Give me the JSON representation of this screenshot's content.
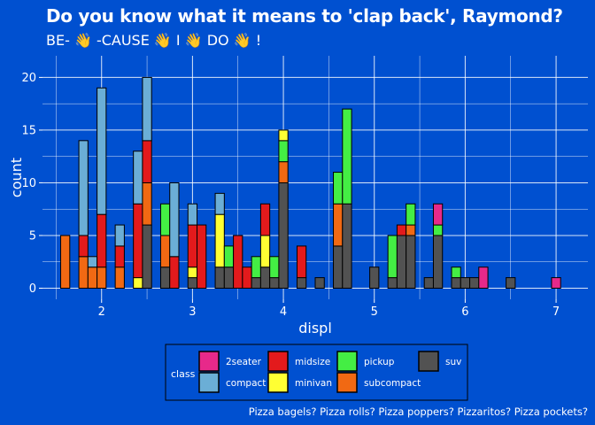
{
  "title": "Do you know what it means to 'clap back', Raymond?",
  "subtitle": "BE- 👋 -CAUSE 👋 I 👋 DO 👋 !",
  "caption": "Pizza bagels? Pizza rolls? Pizza poppers? Pizzaritos? Pizza pockets?",
  "colors": {
    "background": "#0050d0",
    "grid": "#ffffff",
    "2seater": "#e7298a",
    "compact": "#6baed6",
    "midsize": "#e31a1c",
    "minivan": "#ffff33",
    "pickup": "#44ee44",
    "subcompact": "#f16913",
    "suv": "#525252"
  },
  "chart_data": {
    "type": "bar",
    "stacked": true,
    "histogram": true,
    "xlabel": "displ",
    "ylabel": "count",
    "xlim": [
      1.35,
      7.35
    ],
    "ylim": [
      -1.05,
      22.05
    ],
    "xticks": [
      2,
      3,
      4,
      5,
      6,
      7
    ],
    "yticks": [
      0,
      5,
      10,
      15,
      20
    ],
    "bin_width": 0.1,
    "legend_title": "class",
    "legend_position": "bottom",
    "grid": true,
    "series_order": [
      "2seater",
      "compact",
      "midsize",
      "minivan",
      "pickup",
      "subcompact",
      "suv"
    ],
    "bins": [
      {
        "x": 1.6,
        "suv": 0,
        "subcompact": 5
      },
      {
        "x": 1.8,
        "subcompact": 3,
        "midsize": 2,
        "compact": 9
      },
      {
        "x": 1.9,
        "subcompact": 2,
        "compact": 1
      },
      {
        "x": 2.0,
        "subcompact": 2,
        "midsize": 5,
        "compact": 12
      },
      {
        "x": 2.2,
        "subcompact": 2,
        "midsize": 2,
        "compact": 2
      },
      {
        "x": 2.4,
        "minivan": 1,
        "midsize": 7,
        "compact": 5
      },
      {
        "x": 2.5,
        "suv": 6,
        "subcompact": 4,
        "midsize": 4,
        "compact": 6
      },
      {
        "x": 2.7,
        "suv": 2,
        "subcompact": 3,
        "pickup": 3
      },
      {
        "x": 2.8,
        "midsize": 3,
        "compact": 7
      },
      {
        "x": 3.0,
        "suv": 1,
        "minivan": 1,
        "midsize": 4,
        "compact": 2
      },
      {
        "x": 3.1,
        "midsize": 6
      },
      {
        "x": 3.3,
        "suv": 2,
        "minivan": 5,
        "compact": 2
      },
      {
        "x": 3.4,
        "suv": 2,
        "pickup": 2
      },
      {
        "x": 3.5,
        "midsize": 5
      },
      {
        "x": 3.6,
        "midsize": 2
      },
      {
        "x": 3.7,
        "suv": 1,
        "pickup": 2
      },
      {
        "x": 3.8,
        "suv": 2,
        "minivan": 3,
        "midsize": 3
      },
      {
        "x": 3.9,
        "suv": 1,
        "pickup": 2
      },
      {
        "x": 4.0,
        "suv": 10,
        "subcompact": 2,
        "pickup": 2,
        "minivan": 1
      },
      {
        "x": 4.2,
        "suv": 1,
        "midsize": 3
      },
      {
        "x": 4.4,
        "suv": 1
      },
      {
        "x": 4.6,
        "suv": 4,
        "subcompact": 4,
        "pickup": 3
      },
      {
        "x": 4.7,
        "suv": 8,
        "pickup": 9
      },
      {
        "x": 5.0,
        "suv": 2
      },
      {
        "x": 5.2,
        "suv": 1,
        "pickup": 4
      },
      {
        "x": 5.3,
        "suv": 5,
        "midsize": 1
      },
      {
        "x": 5.4,
        "suv": 5,
        "subcompact": 1,
        "pickup": 2
      },
      {
        "x": 5.6,
        "suv": 1
      },
      {
        "x": 5.7,
        "suv": 5,
        "pickup": 1,
        "2seater": 2
      },
      {
        "x": 5.9,
        "suv": 1,
        "pickup": 1
      },
      {
        "x": 6.0,
        "suv": 1
      },
      {
        "x": 6.1,
        "suv": 1
      },
      {
        "x": 6.2,
        "2seater": 2
      },
      {
        "x": 6.5,
        "suv": 1
      },
      {
        "x": 7.0,
        "2seater": 1
      }
    ]
  }
}
